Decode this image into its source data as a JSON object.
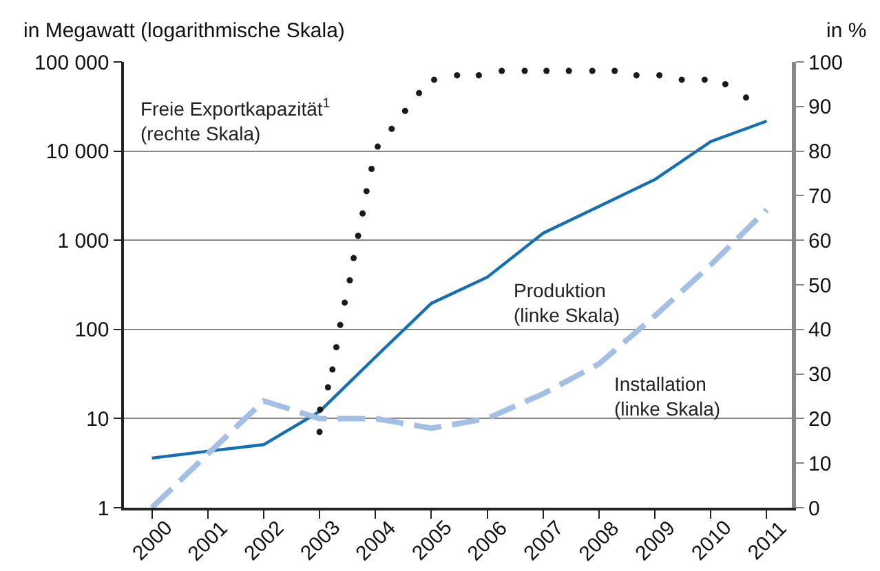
{
  "chart_data": {
    "type": "line",
    "ylabel": "in Megawatt (logarithmische Skala)",
    "y2label": "in %",
    "x": [
      2000,
      2001,
      2002,
      2003,
      2004,
      2005,
      2006,
      2007,
      2008,
      2009,
      2010,
      2011
    ],
    "xlim": [
      1999.5,
      2011.45
    ],
    "xticks": [
      2000,
      2001,
      2002,
      2003,
      2004,
      2005,
      2006,
      2007,
      2008,
      2009,
      2010,
      2011
    ],
    "log": "y",
    "ylim": [
      1,
      100000
    ],
    "yticks": [
      1,
      10,
      100,
      {
        "value": 1000,
        "label": "1 000"
      },
      {
        "value": 10000,
        "label": "10 000"
      },
      {
        "value": 100000,
        "label": "100 000"
      }
    ],
    "y2lim": [
      0,
      100
    ],
    "y2ticks": [
      0,
      10,
      20,
      30,
      40,
      50,
      60,
      70,
      80,
      90,
      100
    ],
    "grid": "y",
    "series": [
      {
        "name": "Freie Exportkapazität$^{1}$\n(rechte Skala)",
        "type": "scatter",
        "axis": "y2",
        "color": "#1a1a1a",
        "x": [
          2003.0,
          2003.01,
          2003.15,
          2003.23,
          2003.3,
          2003.37,
          2003.45,
          2003.54,
          2003.61,
          2003.69,
          2003.77,
          2003.84,
          2003.93,
          2004.04,
          2004.29,
          2004.53,
          2004.78,
          2005.05,
          2005.46,
          2005.85,
          2006.26,
          2006.67,
          2007.06,
          2007.46,
          2007.88,
          2008.28,
          2008.67,
          2009.08,
          2009.48,
          2009.89,
          2010.26,
          2010.63
        ],
        "values": [
          17,
          22,
          27,
          31,
          36,
          41,
          46,
          51,
          56,
          61,
          66,
          71,
          76,
          81,
          85,
          89,
          93,
          96,
          97,
          97,
          98,
          98,
          98,
          98,
          98,
          98,
          97,
          97,
          96,
          96,
          95,
          92
        ]
      },
      {
        "name": "Produktion\n(linke Skala)",
        "line_style": "solid",
        "color": "#1470b4",
        "values": [
          3.6,
          4.3,
          5.1,
          12,
          49,
          196,
          385,
          1200,
          2400,
          4800,
          12800,
          21700
        ]
      },
      {
        "name": "Installation\n(linke Skala)",
        "line_style": "dashed",
        "color": "#a4bfe6",
        "values": [
          1,
          4,
          15.8,
          10,
          10,
          7.8,
          10,
          19,
          41,
          142,
          530,
          2200
        ]
      }
    ]
  }
}
